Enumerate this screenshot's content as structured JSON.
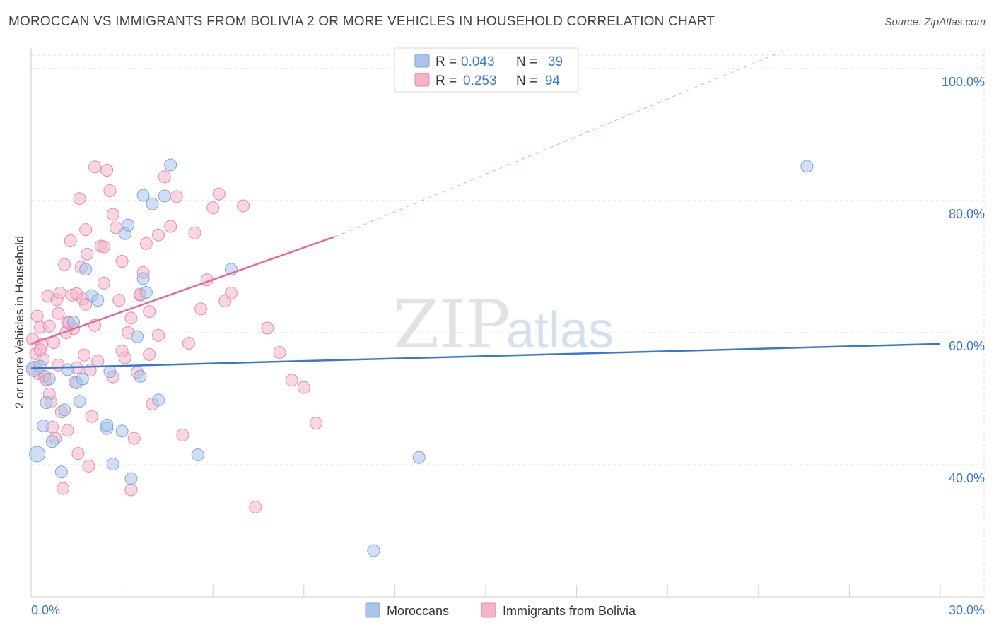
{
  "title": "MOROCCAN VS IMMIGRANTS FROM BOLIVIA 2 OR MORE VEHICLES IN HOUSEHOLD CORRELATION CHART",
  "source": "Source: ZipAtlas.com",
  "watermark": {
    "zip": "ZIP",
    "atlas": "atlas"
  },
  "legend": {
    "r_label": "R =",
    "n_label": "N =",
    "rows": [
      {
        "r": "0.043",
        "n": "39",
        "color": "#a9c4ea"
      },
      {
        "r": "0.253",
        "n": "94",
        "color": "#f4b4c8"
      }
    ]
  },
  "colors": {
    "blue": "#3a78d0",
    "pink": "#e46a94",
    "blue_fill": "#a9c4ea",
    "pink_fill": "#f4b4c8"
  },
  "chart_data": {
    "type": "scatter",
    "title": "MOROCCAN VS IMMIGRANTS FROM BOLIVIA 2 OR MORE VEHICLES IN HOUSEHOLD CORRELATION CHART",
    "xlabel": "",
    "ylabel": "2 or more Vehicles in Household",
    "xlim": [
      0,
      30
    ],
    "ylim": [
      20,
      102
    ],
    "x_tick_labels": [
      "0.0%",
      "30.0%"
    ],
    "y_ticks": [
      {
        "value": 40,
        "label": "40.0%"
      },
      {
        "value": 60,
        "label": "60.0%"
      },
      {
        "value": 80,
        "label": "80.0%"
      },
      {
        "value": 100,
        "label": "100.0%"
      }
    ],
    "series": [
      {
        "name": "Moroccans",
        "color": "#3a78d0",
        "r": 0.043,
        "n": 39,
        "trend": {
          "x0": 0.0,
          "y0": 54.6,
          "x1": 30.0,
          "y1": 58.3
        },
        "x": [
          0.1,
          0.2,
          0.3,
          0.4,
          0.5,
          0.6,
          0.7,
          1.0,
          1.1,
          1.2,
          1.4,
          1.5,
          1.6,
          1.7,
          1.8,
          2.0,
          2.2,
          2.5,
          2.5,
          2.6,
          2.7,
          3.0,
          3.1,
          3.2,
          3.3,
          3.5,
          3.6,
          3.7,
          3.7,
          3.8,
          4.0,
          4.2,
          4.4,
          4.6,
          5.5,
          6.6,
          11.3,
          12.8,
          25.6
        ],
        "y": [
          54.5,
          41.6,
          54.9,
          45.9,
          49.4,
          53.0,
          43.5,
          38.9,
          48.3,
          54.4,
          61.6,
          52.4,
          49.6,
          53.0,
          69.6,
          65.6,
          64.9,
          45.5,
          46.0,
          54.1,
          40.1,
          45.1,
          75.0,
          76.3,
          37.9,
          59.4,
          53.4,
          68.2,
          80.8,
          66.1,
          79.5,
          49.8,
          80.7,
          85.4,
          41.5,
          69.6,
          27.0,
          41.1,
          85.2
        ]
      },
      {
        "name": "Immigrants from Bolivia",
        "color": "#e46a94",
        "r": 0.253,
        "n": 94,
        "trend": {
          "x0": 0.0,
          "y0": 58.3,
          "x1": 10.0,
          "y1": 74.5
        },
        "trend_ext": {
          "x0": 10.0,
          "y0": 74.5,
          "x1": 25.0,
          "y1": 100.0
        },
        "x": [
          0.05,
          0.1,
          0.15,
          0.2,
          0.25,
          0.3,
          0.35,
          0.4,
          0.45,
          0.5,
          0.55,
          0.6,
          0.65,
          0.7,
          0.75,
          0.8,
          0.85,
          0.9,
          0.95,
          1.0,
          1.05,
          1.1,
          1.15,
          1.2,
          1.25,
          1.3,
          1.35,
          1.4,
          1.45,
          1.5,
          1.55,
          1.6,
          1.65,
          1.7,
          1.75,
          1.8,
          1.85,
          1.9,
          1.95,
          2.0,
          2.1,
          2.2,
          2.3,
          2.4,
          2.5,
          2.6,
          2.7,
          2.8,
          2.9,
          3.0,
          3.1,
          3.2,
          3.3,
          3.4,
          3.5,
          3.6,
          3.7,
          3.8,
          3.9,
          4.0,
          4.2,
          4.4,
          4.6,
          4.8,
          5.0,
          5.2,
          5.4,
          5.6,
          5.8,
          6.0,
          6.2,
          6.4,
          6.6,
          7.0,
          7.4,
          7.8,
          8.2,
          8.6,
          9.0,
          9.4,
          0.3,
          0.6,
          0.9,
          1.2,
          1.5,
          1.8,
          2.1,
          2.4,
          2.7,
          3.0,
          3.3,
          3.6,
          3.9,
          4.2
        ],
        "y": [
          59.0,
          54.5,
          56.8,
          62.5,
          53.8,
          60.8,
          58.2,
          56.0,
          53.4,
          52.9,
          65.5,
          61.0,
          49.5,
          45.7,
          58.5,
          44.0,
          65.0,
          62.9,
          66.0,
          48.0,
          36.4,
          70.3,
          60.0,
          61.5,
          61.5,
          73.9,
          65.7,
          60.6,
          52.5,
          54.7,
          41.7,
          80.3,
          69.9,
          65.1,
          56.6,
          75.6,
          71.9,
          39.8,
          54.3,
          47.3,
          85.1,
          55.7,
          73.1,
          67.5,
          84.6,
          81.5,
          77.9,
          75.9,
          64.9,
          70.8,
          56.2,
          60.0,
          36.2,
          44.0,
          54.0,
          65.7,
          69.1,
          73.5,
          63.2,
          49.2,
          59.6,
          83.6,
          76.1,
          80.6,
          44.5,
          58.4,
          75.1,
          63.6,
          68.0,
          78.9,
          81.0,
          64.8,
          66.0,
          79.2,
          33.6,
          60.7,
          57.0,
          52.8,
          51.7,
          46.3,
          57.4,
          50.7,
          55.1,
          45.2,
          65.9,
          64.3,
          61.1,
          73.0,
          53.3,
          57.2,
          62.2,
          65.8,
          56.7,
          74.8
        ]
      }
    ]
  },
  "bottom_legend": [
    {
      "label": "Moroccans",
      "color": "#a9c4ea"
    },
    {
      "label": "Immigrants from Bolivia",
      "color": "#f4b4c8"
    }
  ]
}
